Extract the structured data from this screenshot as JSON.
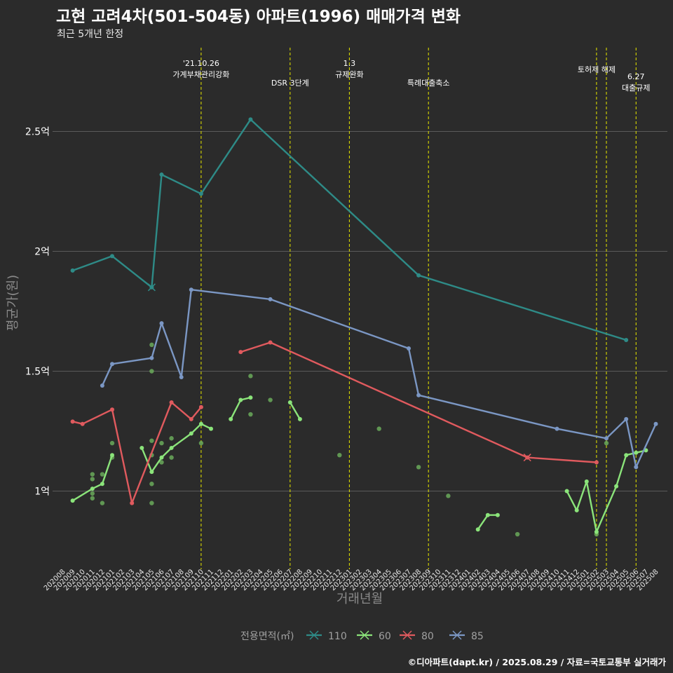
{
  "header": {
    "title": "고현 고려4차(501-504동) 아파트(1996) 매매가격 변화",
    "subtitle": "최근 5개년 한정"
  },
  "caption": "©디아파트(dapt.kr) / 2025.08.29 / 자료=국토교통부 실거래가",
  "colors": {
    "background": "#2b2b2b",
    "grid": "#5a5a5a",
    "event_line": "#d8d800",
    "s110": "#2e8b87",
    "s60": "#8be47a",
    "s80": "#e05a5e",
    "s85": "#7b97c4",
    "scatter": "#6aaa5a"
  },
  "chart_data": {
    "type": "line",
    "xlabel": "거래년월",
    "ylabel": "평균가(원)",
    "ylim": [
      0.72,
      2.82
    ],
    "yticks": [
      {
        "value": 1.0,
        "label": "1억"
      },
      {
        "value": 1.5,
        "label": "1.5억"
      },
      {
        "value": 2.0,
        "label": "2억"
      },
      {
        "value": 2.5,
        "label": "2.5억"
      }
    ],
    "x_categories": [
      "202008",
      "202009",
      "202010",
      "202011",
      "202012",
      "202101",
      "202102",
      "202103",
      "202104",
      "202105",
      "202106",
      "202107",
      "202108",
      "202109",
      "202110",
      "202111",
      "202112",
      "202201",
      "202202",
      "202203",
      "202204",
      "202205",
      "202206",
      "202207",
      "202208",
      "202209",
      "202210",
      "202211",
      "202212",
      "202301",
      "202302",
      "202303",
      "202304",
      "202305",
      "202306",
      "202307",
      "202308",
      "202309",
      "202310",
      "202311",
      "202312",
      "202401",
      "202402",
      "202403",
      "202404",
      "202405",
      "202406",
      "202407",
      "202408",
      "202409",
      "202410",
      "202411",
      "202412",
      "202501",
      "202502",
      "202503",
      "202504",
      "202505",
      "202506",
      "202507",
      "202508"
    ],
    "legend": {
      "title": "전용면적(㎡)",
      "position": "bottom",
      "items": [
        "110",
        "60",
        "80",
        "85"
      ]
    },
    "events": [
      {
        "x": "202110",
        "label": "'21.10.26\n가계부채관리강화",
        "row": 1
      },
      {
        "x": "202207",
        "label": "DSR 3단계",
        "row": 2
      },
      {
        "x": "202301",
        "label": "1.3\n규제완화",
        "row": 1
      },
      {
        "x": "202309",
        "label": "특례대출축소",
        "row": 2
      },
      {
        "x": "202502",
        "label": "토허제 해제",
        "row": 1
      },
      {
        "x": "202503",
        "label": "",
        "row": 1
      },
      {
        "x": "202506",
        "label": "6.27\n대출규제",
        "row": 2
      }
    ],
    "series": [
      {
        "name": "110",
        "color_key": "s110",
        "segments": [
          [
            [
              "202009",
              1.92
            ],
            [
              "202101",
              1.98
            ],
            [
              "202105",
              1.85
            ],
            [
              "202106",
              2.32
            ],
            [
              "202110",
              2.24
            ],
            [
              "202203",
              2.55
            ],
            [
              "202308",
              1.9
            ],
            [
              "202505",
              1.63
            ]
          ]
        ],
        "cross_at": [
          [
            "202105",
            1.85
          ]
        ]
      },
      {
        "name": "60",
        "color_key": "s60",
        "segments": [
          [
            [
              "202009",
              0.96
            ],
            [
              "202011",
              1.01
            ],
            [
              "202012",
              1.03
            ],
            [
              "202101",
              1.15
            ]
          ],
          [
            [
              "202104",
              1.18
            ],
            [
              "202105",
              1.08
            ],
            [
              "202106",
              1.14
            ],
            [
              "202107",
              1.18
            ],
            [
              "202109",
              1.24
            ],
            [
              "202110",
              1.28
            ],
            [
              "202111",
              1.26
            ]
          ],
          [
            [
              "202201",
              1.3
            ],
            [
              "202202",
              1.38
            ],
            [
              "202203",
              1.39
            ]
          ],
          [
            [
              "202207",
              1.37
            ],
            [
              "202208",
              1.3
            ]
          ],
          [
            [
              "202402",
              0.84
            ],
            [
              "202403",
              0.9
            ],
            [
              "202404",
              0.9
            ]
          ],
          [
            [
              "202411",
              1.0
            ],
            [
              "202412",
              0.92
            ],
            [
              "202501",
              1.04
            ],
            [
              "202502",
              0.83
            ],
            [
              "202504",
              1.02
            ],
            [
              "202505",
              1.15
            ],
            [
              "202506",
              1.16
            ],
            [
              "202507",
              1.17
            ]
          ]
        ],
        "cross_at": []
      },
      {
        "name": "80",
        "color_key": "s80",
        "segments": [
          [
            [
              "202009",
              1.29
            ],
            [
              "202010",
              1.28
            ],
            [
              "202101",
              1.34
            ],
            [
              "202103",
              0.95
            ],
            [
              "202107",
              1.37
            ],
            [
              "202109",
              1.3
            ],
            [
              "202110",
              1.35
            ]
          ],
          [
            [
              "202202",
              1.58
            ],
            [
              "202205",
              1.62
            ],
            [
              "202407",
              1.14
            ],
            [
              "202502",
              1.12
            ]
          ]
        ],
        "cross_at": [
          [
            "202407",
            1.14
          ]
        ]
      },
      {
        "name": "85",
        "color_key": "s85",
        "segments": [
          [
            [
              "202012",
              1.44
            ],
            [
              "202101",
              1.53
            ],
            [
              "202105",
              1.555
            ],
            [
              "202106",
              1.7
            ],
            [
              "202108",
              1.475
            ],
            [
              "202109",
              1.84
            ],
            [
              "202205",
              1.8
            ],
            [
              "202307",
              1.595
            ],
            [
              "202308",
              1.4
            ],
            [
              "202410",
              1.26
            ],
            [
              "202503",
              1.22
            ],
            [
              "202505",
              1.3
            ],
            [
              "202506",
              1.1
            ],
            [
              "202508",
              1.28
            ]
          ]
        ],
        "cross_at": []
      }
    ],
    "scatter_points": [
      [
        "202011",
        1.07
      ],
      [
        "202011",
        1.05
      ],
      [
        "202011",
        0.99
      ],
      [
        "202011",
        0.97
      ],
      [
        "202012",
        0.95
      ],
      [
        "202012",
        1.07
      ],
      [
        "202101",
        1.2
      ],
      [
        "202101",
        1.14
      ],
      [
        "202105",
        1.61
      ],
      [
        "202105",
        1.5
      ],
      [
        "202105",
        1.21
      ],
      [
        "202105",
        1.15
      ],
      [
        "202105",
        1.03
      ],
      [
        "202105",
        0.95
      ],
      [
        "202106",
        1.2
      ],
      [
        "202106",
        1.12
      ],
      [
        "202107",
        1.22
      ],
      [
        "202107",
        1.14
      ],
      [
        "202110",
        1.2
      ],
      [
        "202203",
        1.48
      ],
      [
        "202203",
        1.32
      ],
      [
        "202205",
        1.38
      ],
      [
        "202212",
        1.15
      ],
      [
        "202304",
        1.26
      ],
      [
        "202308",
        1.1
      ],
      [
        "202311",
        0.98
      ],
      [
        "202406",
        0.82
      ],
      [
        "202502",
        0.82
      ],
      [
        "202503",
        1.2
      ]
    ]
  }
}
